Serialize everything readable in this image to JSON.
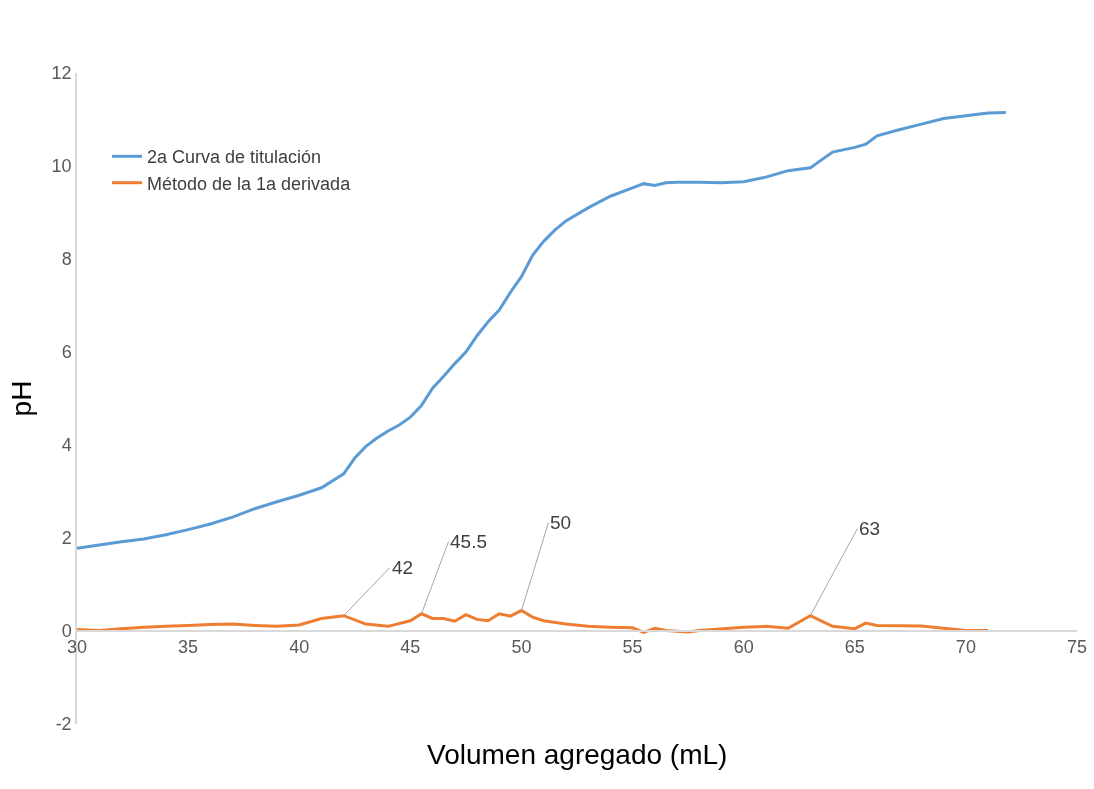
{
  "chart_data": {
    "type": "line",
    "xlabel": "Volumen agregado (mL)",
    "ylabel": "pH",
    "xlim": [
      30,
      75
    ],
    "xticks": [
      30,
      35,
      40,
      45,
      50,
      55,
      60,
      65,
      70,
      75
    ],
    "ylim": [
      -2,
      12
    ],
    "yticks": [
      -2,
      0,
      2,
      4,
      6,
      8,
      10,
      12
    ],
    "grid": false,
    "legend": "top left",
    "marker": "none",
    "line_style": "solid",
    "series": [
      {
        "name": "2a Curva de titulación",
        "color": "#5b9bd5",
        "x": [
          30,
          31,
          32,
          33,
          34,
          35,
          36,
          37,
          38,
          39,
          40,
          41,
          42,
          42.5,
          43,
          43.5,
          44,
          44.5,
          45,
          45.5,
          46,
          46.5,
          47,
          47.5,
          48,
          48.5,
          49,
          49.5,
          50,
          50.5,
          51,
          51.5,
          52,
          53,
          54,
          55,
          55.5,
          56,
          56.5,
          57,
          58,
          59,
          60,
          61,
          62,
          63,
          64,
          65,
          65.5,
          66,
          67,
          68,
          69,
          70,
          71,
          71.8
        ],
        "values": [
          1.78,
          1.85,
          1.92,
          1.98,
          2.07,
          2.18,
          2.3,
          2.45,
          2.63,
          2.78,
          2.92,
          3.08,
          3.38,
          3.72,
          3.97,
          4.15,
          4.3,
          4.43,
          4.6,
          4.85,
          5.22,
          5.48,
          5.75,
          6.0,
          6.35,
          6.65,
          6.9,
          7.28,
          7.62,
          8.08,
          8.38,
          8.62,
          8.82,
          9.1,
          9.35,
          9.53,
          9.62,
          9.58,
          9.64,
          9.65,
          9.65,
          9.64,
          9.66,
          9.76,
          9.9,
          9.96,
          10.3,
          10.4,
          10.47,
          10.65,
          10.78,
          10.9,
          11.02,
          11.08,
          11.14,
          11.15
        ]
      },
      {
        "name": "Método de la 1a derivada",
        "color": "#ed7d31",
        "x": [
          30,
          31,
          32,
          33,
          34,
          35,
          36,
          37,
          38,
          39,
          40,
          41,
          42,
          43,
          44,
          45,
          45.5,
          46,
          46.5,
          47,
          47.5,
          48,
          48.5,
          49,
          49.5,
          50,
          50.5,
          51,
          52,
          53,
          54,
          55,
          55.5,
          56,
          56.5,
          57.5,
          58,
          60,
          61,
          62,
          63,
          64,
          65,
          65.5,
          66,
          68,
          69,
          70,
          71
        ],
        "values": [
          0.03,
          0.01,
          0.05,
          0.08,
          0.1,
          0.12,
          0.14,
          0.15,
          0.12,
          0.1,
          0.13,
          0.27,
          0.33,
          0.15,
          0.1,
          0.22,
          0.37,
          0.27,
          0.27,
          0.21,
          0.35,
          0.25,
          0.22,
          0.37,
          0.32,
          0.44,
          0.3,
          0.22,
          0.15,
          0.1,
          0.08,
          0.07,
          -0.03,
          0.06,
          0.01,
          -0.02,
          0.01,
          0.08,
          0.1,
          0.06,
          0.33,
          0.1,
          0.05,
          0.17,
          0.12,
          0.11,
          0.06,
          0.01,
          0.01
        ]
      }
    ],
    "annotations": [
      {
        "text": "42",
        "x": 42,
        "y": 0.33
      },
      {
        "text": "45.5",
        "x": 45.5,
        "y": 0.37
      },
      {
        "text": "50",
        "x": 50,
        "y": 0.44
      },
      {
        "text": "63",
        "x": 63,
        "y": 0.33
      }
    ]
  }
}
